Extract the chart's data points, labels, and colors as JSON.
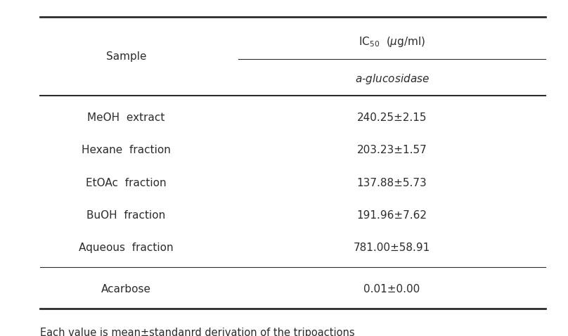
{
  "col_sample": "Sample",
  "col_header_top": "IC$_{50}$  ($\\mu$g/ml)",
  "col_header_sub": "$\\it{a}$-glucosidase",
  "rows": [
    {
      "sample": "MeOH  extract",
      "ic50": "240.25±2.15"
    },
    {
      "sample": "Hexane  fraction",
      "ic50": "203.23±1.57"
    },
    {
      "sample": "EtOAc  fraction",
      "ic50": "137.88±5.73"
    },
    {
      "sample": "BuOH  fraction",
      "ic50": "191.96±7.62"
    },
    {
      "sample": "Aqueous  fraction",
      "ic50": "781.00±58.91"
    }
  ],
  "acarbose": {
    "sample": "Acarbose",
    "ic50": "0.01±0.00"
  },
  "footnote": "Each value is mean±standanrd derivation of the tripoactions",
  "bg_color": "#ffffff",
  "text_color": "#2c2c2c",
  "font_size": 11,
  "footnote_font_size": 10.5,
  "header_font_size": 11
}
